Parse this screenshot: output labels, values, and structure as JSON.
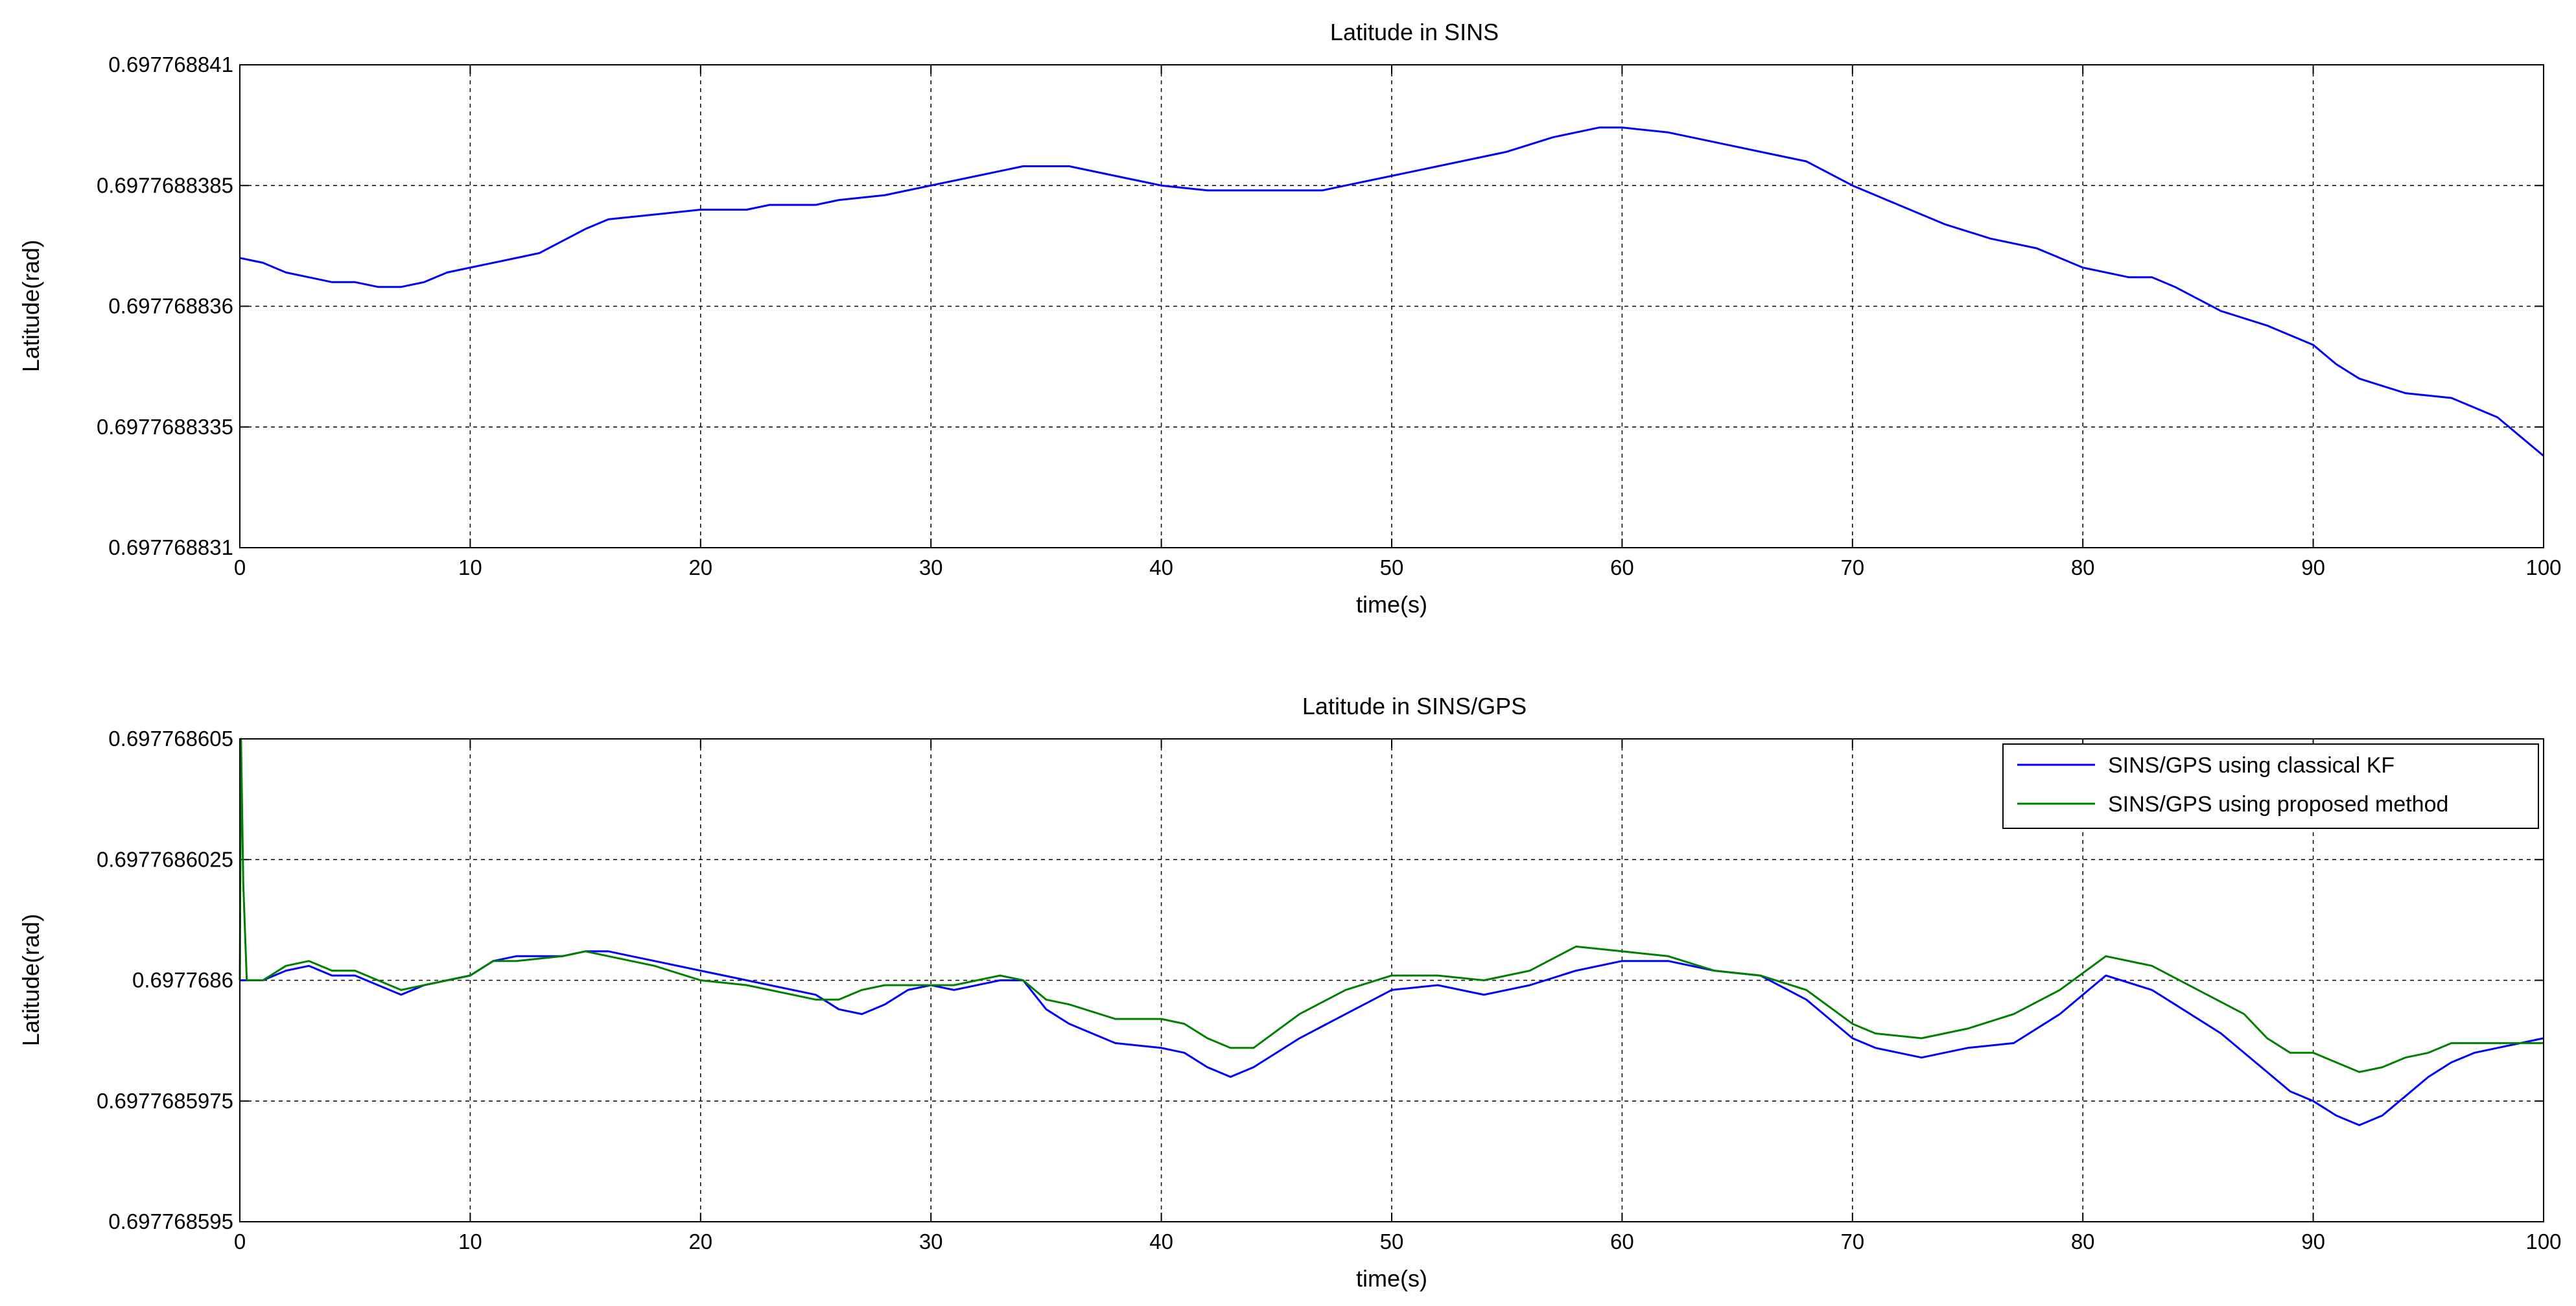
{
  "chart_data": [
    {
      "type": "line",
      "title": "Latitude in SINS",
      "xlabel": "time(s)",
      "ylabel": "Latitude(rad)",
      "xlim": [
        0,
        100
      ],
      "ylim": [
        0.697768831,
        0.697768841
      ],
      "grid": true,
      "x_ticks": [
        "0",
        "10",
        "20",
        "30",
        "40",
        "50",
        "60",
        "70",
        "80",
        "90",
        "100"
      ],
      "y_ticks": [
        {
          "value": 0.697768831,
          "label": "0.697768831"
        },
        {
          "value": 0.6977688335,
          "label": "0.6977688335"
        },
        {
          "value": 0.697768836,
          "label": "0.697768836"
        },
        {
          "value": 0.6977688385,
          "label": "0.6977688385"
        },
        {
          "value": 0.697768841,
          "label": "0.697768841"
        }
      ],
      "series": [
        {
          "color": "#0000ff",
          "x": [
            0,
            1,
            2,
            3,
            4,
            5,
            6,
            7,
            8,
            9,
            10,
            12,
            13,
            15,
            16,
            18,
            20,
            22,
            23,
            25,
            26,
            28,
            30,
            32,
            34,
            35,
            36,
            38,
            40,
            42,
            43,
            45,
            47,
            48,
            50,
            52,
            54,
            55,
            57,
            58,
            59,
            60,
            62,
            64,
            66,
            68,
            70,
            72,
            74,
            76,
            78,
            80,
            82,
            83,
            84,
            86,
            88,
            90,
            91,
            92,
            94,
            96,
            97,
            98,
            99,
            100
          ],
          "y": [
            0.697768837,
            0.6977688369,
            0.6977688367,
            0.6977688366,
            0.6977688365,
            0.6977688365,
            0.6977688364,
            0.6977688364,
            0.6977688365,
            0.6977688367,
            0.6977688368,
            0.697768837,
            0.6977688371,
            0.6977688376,
            0.6977688378,
            0.6977688379,
            0.697768838,
            0.697768838,
            0.6977688381,
            0.6977688381,
            0.6977688382,
            0.6977688383,
            0.6977688385,
            0.6977688387,
            0.6977688389,
            0.6977688389,
            0.6977688389,
            0.6977688387,
            0.6977688385,
            0.6977688384,
            0.6977688384,
            0.6977688384,
            0.6977688384,
            0.6977688385,
            0.6977688387,
            0.6977688389,
            0.6977688391,
            0.6977688392,
            0.6977688395,
            0.6977688396,
            0.6977688397,
            0.6977688397,
            0.6977688396,
            0.6977688394,
            0.6977688392,
            0.697768839,
            0.6977688385,
            0.6977688381,
            0.6977688377,
            0.6977688374,
            0.6977688372,
            0.6977688368,
            0.6977688366,
            0.6977688366,
            0.6977688364,
            0.6977688359,
            0.6977688356,
            0.6977688352,
            0.6977688348,
            0.6977688345,
            0.6977688342,
            0.6977688341,
            0.6977688339,
            0.6977688337,
            0.6977688333,
            0.6977688329
          ]
        }
      ]
    },
    {
      "type": "line",
      "title": "Latitude in SINS/GPS",
      "xlabel": "time(s)",
      "ylabel": "Latitude(rad)",
      "xlim": [
        0,
        100
      ],
      "ylim": [
        0.697768595,
        0.697768605
      ],
      "grid": true,
      "legend_position": "top-right",
      "x_ticks": [
        "0",
        "10",
        "20",
        "30",
        "40",
        "50",
        "60",
        "70",
        "80",
        "90",
        "100"
      ],
      "y_ticks": [
        {
          "value": 0.697768595,
          "label": "0.697768595"
        },
        {
          "value": 0.6977685975,
          "label": "0.6977685975"
        },
        {
          "value": 0.6977686,
          "label": "0.6977686"
        },
        {
          "value": 0.6977686025,
          "label": "0.6977686025"
        },
        {
          "value": 0.697768605,
          "label": "0.697768605"
        }
      ],
      "series": [
        {
          "name": "SINS/GPS using classical KF",
          "color": "#0000ff",
          "x": [
            0,
            0.2,
            1,
            2,
            3,
            4,
            5,
            6,
            7,
            8,
            9,
            10,
            11,
            12,
            14,
            15,
            16,
            17,
            18,
            20,
            22,
            24,
            25,
            26,
            27,
            28,
            29,
            30,
            31,
            33,
            34,
            35,
            36,
            38,
            40,
            41,
            42,
            43,
            44,
            46,
            48,
            50,
            52,
            54,
            56,
            58,
            60,
            62,
            64,
            66,
            68,
            70,
            71,
            73,
            75,
            77,
            79,
            81,
            83,
            84,
            86,
            88,
            89,
            90,
            91,
            92,
            93,
            94,
            95,
            96,
            97,
            98,
            100
          ],
          "y": [
            0.6977686,
            0.6977686,
            0.6977686,
            0.6977686002,
            0.6977686003,
            0.6977686001,
            0.6977686001,
            0.6977685999,
            0.6977685997,
            0.6977685999,
            0.6977686,
            0.6977686001,
            0.6977686004,
            0.6977686005,
            0.6977686005,
            0.6977686006,
            0.6977686006,
            0.6977686005,
            0.6977686004,
            0.6977686002,
            0.6977686,
            0.6977685998,
            0.6977685997,
            0.6977685994,
            0.6977685993,
            0.6977685995,
            0.6977685998,
            0.6977685999,
            0.6977685998,
            0.6977686,
            0.6977686,
            0.6977685994,
            0.6977685991,
            0.6977685987,
            0.6977685986,
            0.6977685985,
            0.6977685982,
            0.697768598,
            0.6977685982,
            0.6977685988,
            0.6977685993,
            0.6977685998,
            0.6977685999,
            0.6977685997,
            0.6977685999,
            0.6977686002,
            0.6977686004,
            0.6977686004,
            0.6977686002,
            0.6977686001,
            0.6977685996,
            0.6977685988,
            0.6977685986,
            0.6977685984,
            0.6977685986,
            0.6977685987,
            0.6977685993,
            0.6977686001,
            0.6977685998,
            0.6977685995,
            0.6977685989,
            0.6977685981,
            0.6977685977,
            0.6977685975,
            0.6977685972,
            0.697768597,
            0.6977685972,
            0.6977685976,
            0.697768598,
            0.6977685983,
            0.6977685985,
            0.6977685986,
            0.6977685988
          ]
        },
        {
          "name": "SINS/GPS using proposed method",
          "color": "#008000",
          "x": [
            0,
            0.05,
            0.15,
            0.3,
            1,
            2,
            3,
            4,
            5,
            6,
            7,
            8,
            9,
            10,
            11,
            12,
            14,
            15,
            16,
            18,
            20,
            22,
            24,
            25,
            26,
            27,
            28,
            30,
            31,
            32,
            33,
            34,
            35,
            36,
            38,
            40,
            41,
            42,
            43,
            44,
            46,
            48,
            50,
            52,
            54,
            56,
            58,
            60,
            62,
            64,
            66,
            68,
            70,
            71,
            73,
            75,
            77,
            79,
            81,
            83,
            85,
            87,
            88,
            89,
            90,
            91,
            92,
            93,
            94,
            95,
            96,
            98,
            100
          ],
          "y": [
            0.6977686,
            0.697768605,
            0.697768602,
            0.6977686,
            0.6977686,
            0.6977686003,
            0.6977686004,
            0.6977686002,
            0.6977686002,
            0.6977686,
            0.6977685998,
            0.6977685999,
            0.6977686,
            0.6977686001,
            0.6977686004,
            0.6977686004,
            0.6977686005,
            0.6977686006,
            0.6977686005,
            0.6977686003,
            0.6977686,
            0.6977685999,
            0.6977685997,
            0.6977685996,
            0.6977685996,
            0.6977685998,
            0.6977685999,
            0.6977685999,
            0.6977685999,
            0.6977686,
            0.6977686001,
            0.6977686,
            0.6977685996,
            0.6977685995,
            0.6977685992,
            0.6977685992,
            0.6977685991,
            0.6977685988,
            0.6977685986,
            0.6977685986,
            0.6977685993,
            0.6977685998,
            0.6977686001,
            0.6977686001,
            0.6977686,
            0.6977686002,
            0.6977686007,
            0.6977686006,
            0.6977686005,
            0.6977686002,
            0.6977686001,
            0.6977685998,
            0.6977685991,
            0.6977685989,
            0.6977685988,
            0.697768599,
            0.6977685993,
            0.6977685998,
            0.6977686005,
            0.6977686003,
            0.6977685998,
            0.6977685993,
            0.6977685988,
            0.6977685985,
            0.6977685985,
            0.6977685983,
            0.6977685981,
            0.6977685982,
            0.6977685984,
            0.6977685985,
            0.6977685987,
            0.6977685987,
            0.6977685987
          ]
        }
      ]
    }
  ]
}
